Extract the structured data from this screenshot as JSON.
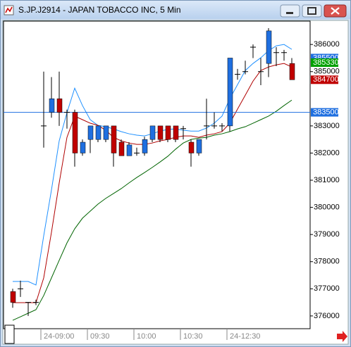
{
  "chart_data": {
    "type": "candlestick",
    "title": "S.JP.J2914 - JAPAN TOBACCO INC, 5 Min",
    "categories": [
      null,
      null,
      null,
      null,
      "24-09:00",
      null,
      null,
      null,
      null,
      null,
      "09:30",
      null,
      null,
      null,
      null,
      null,
      "10:00",
      null,
      null,
      null,
      null,
      null,
      "10:30",
      null,
      null,
      null,
      null,
      null,
      "24-12:30",
      null,
      null,
      null,
      null,
      null,
      null,
      null,
      null
    ],
    "open": [
      376900,
      377000,
      376500,
      376500,
      383000,
      383500,
      384000,
      383500,
      383500,
      382000,
      382500,
      382500,
      382500,
      383000,
      382400,
      381900,
      382000,
      382000,
      382500,
      383000,
      383000,
      383000,
      382900,
      382400,
      382000,
      383000,
      383000,
      383000,
      383000,
      384900,
      385000,
      385900,
      385000,
      385300,
      385700,
      385700,
      385300
    ],
    "high": [
      377000,
      377300,
      376500,
      376600,
      385000,
      384800,
      385000,
      383600,
      383600,
      382500,
      383000,
      383000,
      383000,
      383000,
      382500,
      382400,
      382200,
      382600,
      383000,
      383000,
      383000,
      383000,
      383000,
      382500,
      382500,
      384000,
      383500,
      383100,
      385500,
      385100,
      385400,
      386000,
      385500,
      386600,
      385900,
      385800,
      385500
    ],
    "low": [
      376300,
      376700,
      376000,
      376400,
      382200,
      383300,
      383000,
      382900,
      381500,
      381900,
      382000,
      382400,
      382400,
      381500,
      381900,
      381900,
      381900,
      381900,
      382400,
      382400,
      382400,
      382400,
      382500,
      381500,
      381900,
      382500,
      382900,
      382800,
      382800,
      384700,
      384900,
      385500,
      384500,
      384800,
      385200,
      385400,
      384700
    ],
    "close": [
      376500,
      377000,
      376500,
      376500,
      383000,
      384000,
      383500,
      383500,
      382000,
      382400,
      383000,
      383000,
      383000,
      382000,
      381900,
      382300,
      382000,
      382500,
      383000,
      382500,
      382500,
      382500,
      382900,
      382000,
      382500,
      383000,
      383000,
      383000,
      385500,
      384900,
      385000,
      385900,
      385000,
      386500,
      385700,
      385700,
      384700
    ],
    "up_color": "#1f6fe0",
    "down_color": "#c00000",
    "doji_color": "#000000",
    "series": [
      {
        "color": "#1e90ff",
        "values": [
          377270,
          377270,
          377270,
          377140,
          378950,
          380640,
          382450,
          383490,
          384390,
          383750,
          383230,
          383020,
          382970,
          382890,
          382790,
          382710,
          382660,
          382630,
          382710,
          382810,
          382870,
          382890,
          382840,
          382810,
          382810,
          382920,
          383100,
          383360,
          384000,
          384520,
          385040,
          385300,
          385510,
          385770,
          385950,
          386000,
          385820
        ]
      },
      {
        "color": "#b00000",
        "values": [
          376490,
          376490,
          376490,
          376490,
          377400,
          379080,
          380900,
          382580,
          383360,
          383230,
          383100,
          383020,
          382840,
          382580,
          382450,
          382370,
          382320,
          382320,
          382370,
          382450,
          382500,
          382580,
          382630,
          382630,
          382580,
          382660,
          382710,
          382790,
          383100,
          383620,
          384130,
          384650,
          385040,
          385170,
          385250,
          385300,
          385170
        ]
      },
      {
        "color": "#006400",
        "values": [
          375840,
          375970,
          376100,
          376230,
          376750,
          377400,
          378050,
          378690,
          379210,
          379600,
          379860,
          380120,
          380330,
          380510,
          380690,
          380900,
          381100,
          381280,
          381470,
          381670,
          381880,
          382140,
          382370,
          382500,
          382550,
          382580,
          382660,
          382710,
          382790,
          382890,
          382970,
          383100,
          383230,
          383360,
          383540,
          383750,
          383950
        ]
      }
    ],
    "ylim": [
      375530,
      386860
    ],
    "yticks": [
      376000,
      377000,
      378000,
      379000,
      380000,
      381000,
      382000,
      383000,
      385000,
      386000
    ],
    "markers": [
      {
        "value": 385500,
        "color": "#1f6fe0"
      },
      {
        "value": 385330,
        "color": "#00a000"
      },
      {
        "value": 384700,
        "color": "#c00000"
      },
      {
        "value": 383500,
        "color": "#1f6fe0",
        "line": true
      }
    ]
  }
}
